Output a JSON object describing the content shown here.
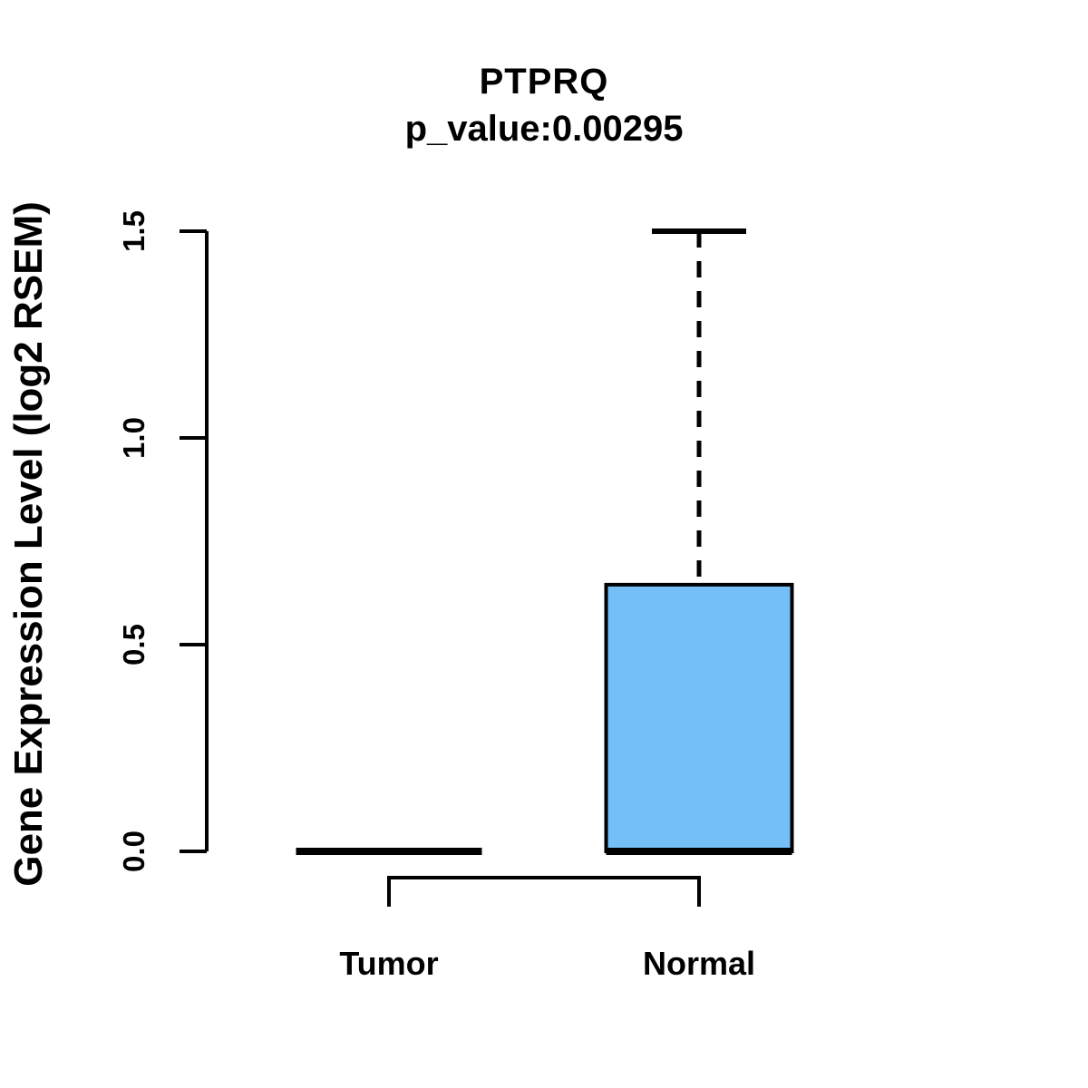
{
  "chart_data": {
    "type": "boxplot",
    "title": "PTPRQ",
    "subtitle": "p_value:0.00295",
    "ylabel": "Gene Expression Level (log2 RSEM)",
    "xlabel": "",
    "ylim": [
      0,
      1.5
    ],
    "yticks": [
      "0.0",
      "0.5",
      "1.0",
      "1.5"
    ],
    "grid": false,
    "groups": [
      {
        "label": "Tumor",
        "median": 0.0,
        "q1": 0.0,
        "q3": 0.0,
        "whisker_low": 0.0,
        "whisker_high": 0.0,
        "fill": "#74BFF7"
      },
      {
        "label": "Normal",
        "median": 0.0,
        "q1": 0.0,
        "q3": 0.645,
        "whisker_low": 0.0,
        "whisker_high": 1.5,
        "fill": "#74BFF7"
      }
    ],
    "comparison_bracket": {
      "between": [
        "Tumor",
        "Normal"
      ]
    },
    "colors": {
      "box_fill": "#74BFF7",
      "line": "#000000",
      "background": "#FFFFFF"
    }
  }
}
